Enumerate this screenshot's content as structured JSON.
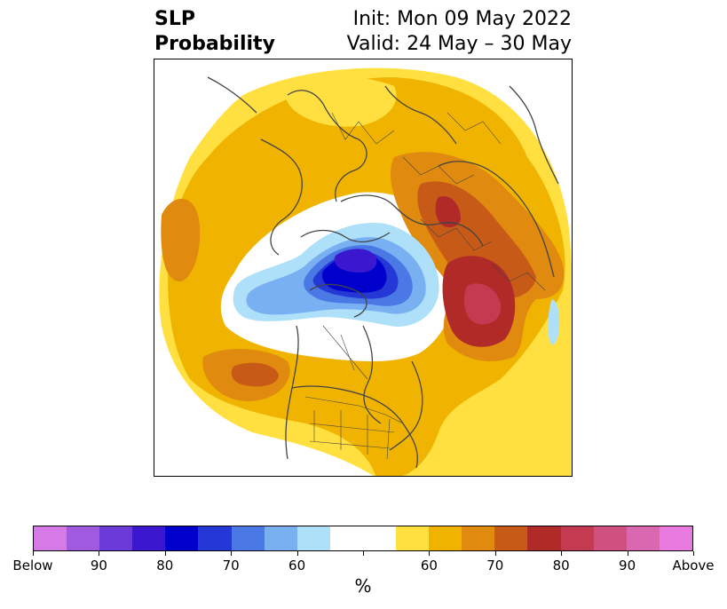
{
  "title": {
    "left_line1": "SLP",
    "left_line2": "Probability",
    "right_line1": "Init: Mon 09 May 2022",
    "right_line2": "Valid: 24 May – 30 May"
  },
  "colorbar": {
    "colors": [
      "#d67ae8",
      "#a05ae0",
      "#6c3ad8",
      "#3b18d0",
      "#0000cc",
      "#2438d6",
      "#4a78e4",
      "#78b0f2",
      "#aee0fa",
      "#ffffff",
      "#ffffff",
      "#ffe040",
      "#f0b400",
      "#e08a10",
      "#c85a18",
      "#b02a28",
      "#c43a50",
      "#d05080",
      "#da68b0",
      "#e87ae0"
    ],
    "tick_labels": [
      "Below",
      "90",
      "80",
      "70",
      "60",
      "",
      "60",
      "70",
      "80",
      "90",
      "Above"
    ],
    "unit": "%"
  },
  "map": {
    "colors": {
      "light_yellow": "#ffe040",
      "yellow": "#f0b400",
      "orange": "#e08a10",
      "dark_orange": "#c85a18",
      "red": "#b02a28",
      "rose": "#c43a50",
      "pale_blue": "#aee0fa",
      "light_blue": "#78b0f2",
      "mid_blue": "#4a78e4",
      "blue": "#2438d6",
      "deep_blue": "#0000cc",
      "indigo": "#3b18d0",
      "coast": "#444444"
    }
  }
}
